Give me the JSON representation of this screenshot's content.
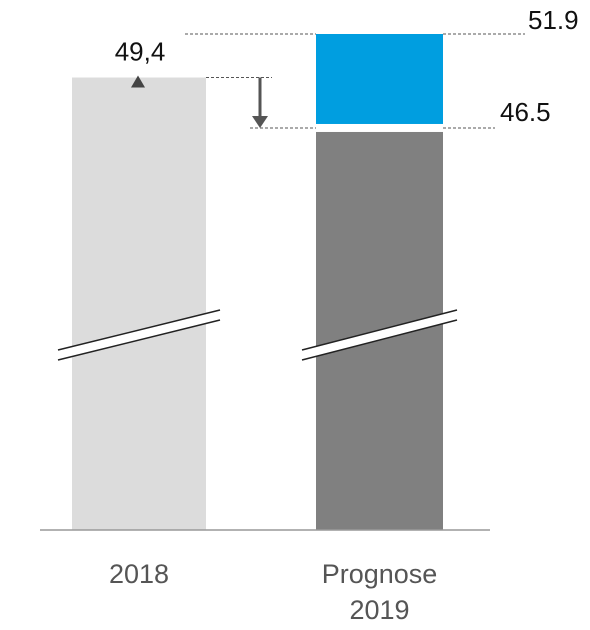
{
  "chart_data": {
    "type": "bar",
    "categories": [
      "2018",
      "Prognose 2019"
    ],
    "values": [
      49.4,
      46.5
    ],
    "value_labels": [
      "49,4",
      "46.5"
    ],
    "colors": [
      "#dcdcdc",
      "#808080"
    ],
    "forecast_high": 51.9,
    "forecast_color": "#009ee0",
    "ylim": [
      23.4,
      51.9
    ]
  }
}
